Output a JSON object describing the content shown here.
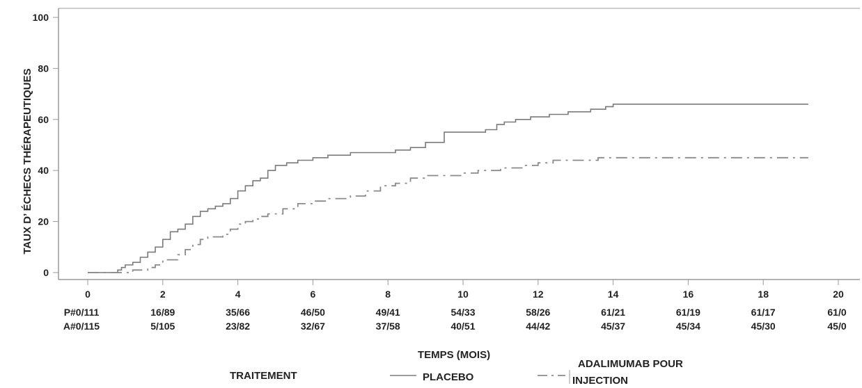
{
  "chart_data": {
    "type": "line",
    "xlabel": "TEMPS (MOIS)",
    "ylabel": "TAUX D’ ÉCHECS THÉRAPEUTIQUES",
    "xlim": [
      0,
      20
    ],
    "ylim": [
      0,
      100
    ],
    "x_ticks": [
      "0",
      "2",
      "4",
      "6",
      "8",
      "10",
      "12",
      "14",
      "16",
      "18",
      "20"
    ],
    "y_ticks": [
      "0",
      "20",
      "40",
      "60",
      "80",
      "100"
    ],
    "grid": false,
    "series": [
      {
        "name": "PLACEBO",
        "line_style": "solid",
        "color": "#7a7a7a",
        "x": [
          0,
          0.6,
          0.8,
          0.9,
          1.0,
          1.2,
          1.4,
          1.6,
          1.8,
          2.0,
          2.2,
          2.4,
          2.6,
          2.8,
          3.0,
          3.2,
          3.4,
          3.6,
          3.8,
          4.0,
          4.2,
          4.4,
          4.6,
          4.8,
          5.0,
          5.3,
          5.6,
          6.0,
          6.4,
          7.0,
          7.6,
          8.2,
          8.6,
          9.0,
          9.5,
          10.2,
          10.6,
          10.9,
          11.1,
          11.4,
          11.8,
          12.3,
          12.8,
          13.4,
          13.8,
          14.0,
          16.0,
          18.0,
          19.2
        ],
        "y": [
          0,
          0,
          1,
          2,
          3,
          4,
          6,
          8,
          10,
          13,
          16,
          17,
          19,
          22,
          24,
          25,
          26,
          27,
          29,
          32,
          34,
          36,
          37,
          40,
          42,
          43,
          44,
          45,
          46,
          47,
          47,
          48,
          49,
          51,
          55,
          55,
          56,
          58,
          59,
          60,
          61,
          62,
          63,
          64,
          65,
          66,
          66,
          66,
          66
        ]
      },
      {
        "name": "ADALIMUMAB POUR INJECTION",
        "line_style": "dashed",
        "color": "#8a8a8a",
        "x": [
          0,
          0.8,
          1.2,
          1.6,
          1.8,
          2.0,
          2.4,
          2.6,
          2.8,
          3.0,
          3.2,
          3.6,
          3.8,
          4.0,
          4.2,
          4.4,
          4.6,
          4.8,
          5.2,
          5.6,
          6.0,
          6.4,
          7.0,
          7.4,
          7.8,
          8.2,
          8.6,
          9.0,
          10.0,
          10.4,
          11.0,
          11.6,
          12.0,
          12.4,
          13.0,
          13.6,
          14.0,
          16.0,
          18.0,
          19.2
        ],
        "y": [
          0,
          0,
          1,
          2,
          3,
          5,
          7,
          9,
          11,
          13,
          14,
          15,
          17,
          19,
          20,
          21,
          22,
          23,
          25,
          27,
          28,
          29,
          30,
          32,
          34,
          35,
          37,
          38,
          39,
          40,
          41,
          42,
          43,
          44,
          44,
          45,
          45,
          45,
          45,
          45
        ]
      }
    ],
    "risk_table": {
      "rows": [
        {
          "label": "P#",
          "values": [
            "P#0/111",
            "16/89",
            "35/66",
            "46/50",
            "49/41",
            "54/33",
            "58/26",
            "61/21",
            "61/19",
            "61/17",
            "61/0"
          ]
        },
        {
          "label": "A#",
          "values": [
            "A#0/115",
            "5/105",
            "23/82",
            "32/67",
            "37/58",
            "40/51",
            "44/42",
            "45/37",
            "45/34",
            "45/30",
            "45/0"
          ]
        }
      ]
    },
    "legend": {
      "title": "TRAITEMENT",
      "placement": "bottom",
      "entries": [
        {
          "label": "PLACEBO",
          "style": "solid"
        },
        {
          "label": "ADALIMUMAB POUR",
          "label_line2": "INJECTION",
          "style": "dashed"
        }
      ]
    }
  }
}
